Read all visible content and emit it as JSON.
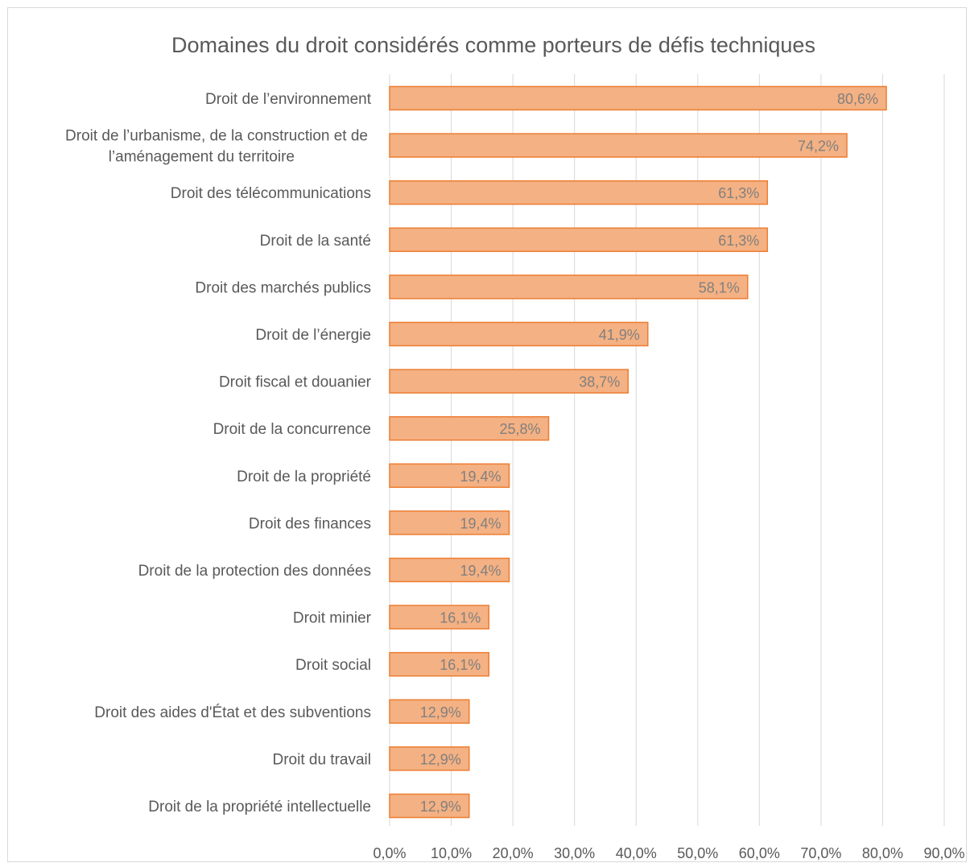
{
  "chart_data": {
    "type": "bar",
    "orientation": "horizontal",
    "title": "Domaines du droit considérés comme porteurs de défis techniques",
    "xlabel": "",
    "ylabel": "",
    "xlim": [
      0,
      90
    ],
    "x_ticks": [
      0,
      10,
      20,
      30,
      40,
      50,
      60,
      70,
      80,
      90
    ],
    "x_tick_labels": [
      "0,0%",
      "10,0%",
      "20,0%",
      "30,0%",
      "40,0%",
      "50,0%",
      "60,0%",
      "70,0%",
      "80,0%",
      "90,0%"
    ],
    "grid": "vertical",
    "legend": "none",
    "bar_fill_color": "#f4b183",
    "bar_border_color": "#ed7d31",
    "categories": [
      [
        "Droit de l’environnement"
      ],
      [
        "Droit de l’urbanisme, de la construction et de",
        "l’aménagement du territoire"
      ],
      [
        "Droit des télécommunications"
      ],
      [
        "Droit de la santé"
      ],
      [
        "Droit des marchés publics"
      ],
      [
        "Droit de l’énergie"
      ],
      [
        "Droit fiscal et douanier"
      ],
      [
        "Droit de la concurrence"
      ],
      [
        "Droit de la propriété"
      ],
      [
        "Droit des finances"
      ],
      [
        "Droit de la protection des données"
      ],
      [
        "Droit minier"
      ],
      [
        "Droit social"
      ],
      [
        "Droit des aides d'État et des subventions"
      ],
      [
        "Droit du travail"
      ],
      [
        "Droit de la propriété intellectuelle"
      ]
    ],
    "values": [
      80.6,
      74.2,
      61.3,
      61.3,
      58.1,
      41.9,
      38.7,
      25.8,
      19.4,
      19.4,
      19.4,
      16.1,
      16.1,
      12.9,
      12.9,
      12.9
    ],
    "value_labels": [
      "80,6%",
      "74,2%",
      "61,3%",
      "61,3%",
      "58,1%",
      "41,9%",
      "38,7%",
      "25,8%",
      "19,4%",
      "19,4%",
      "19,4%",
      "16,1%",
      "16,1%",
      "12,9%",
      "12,9%",
      "12,9%"
    ]
  }
}
